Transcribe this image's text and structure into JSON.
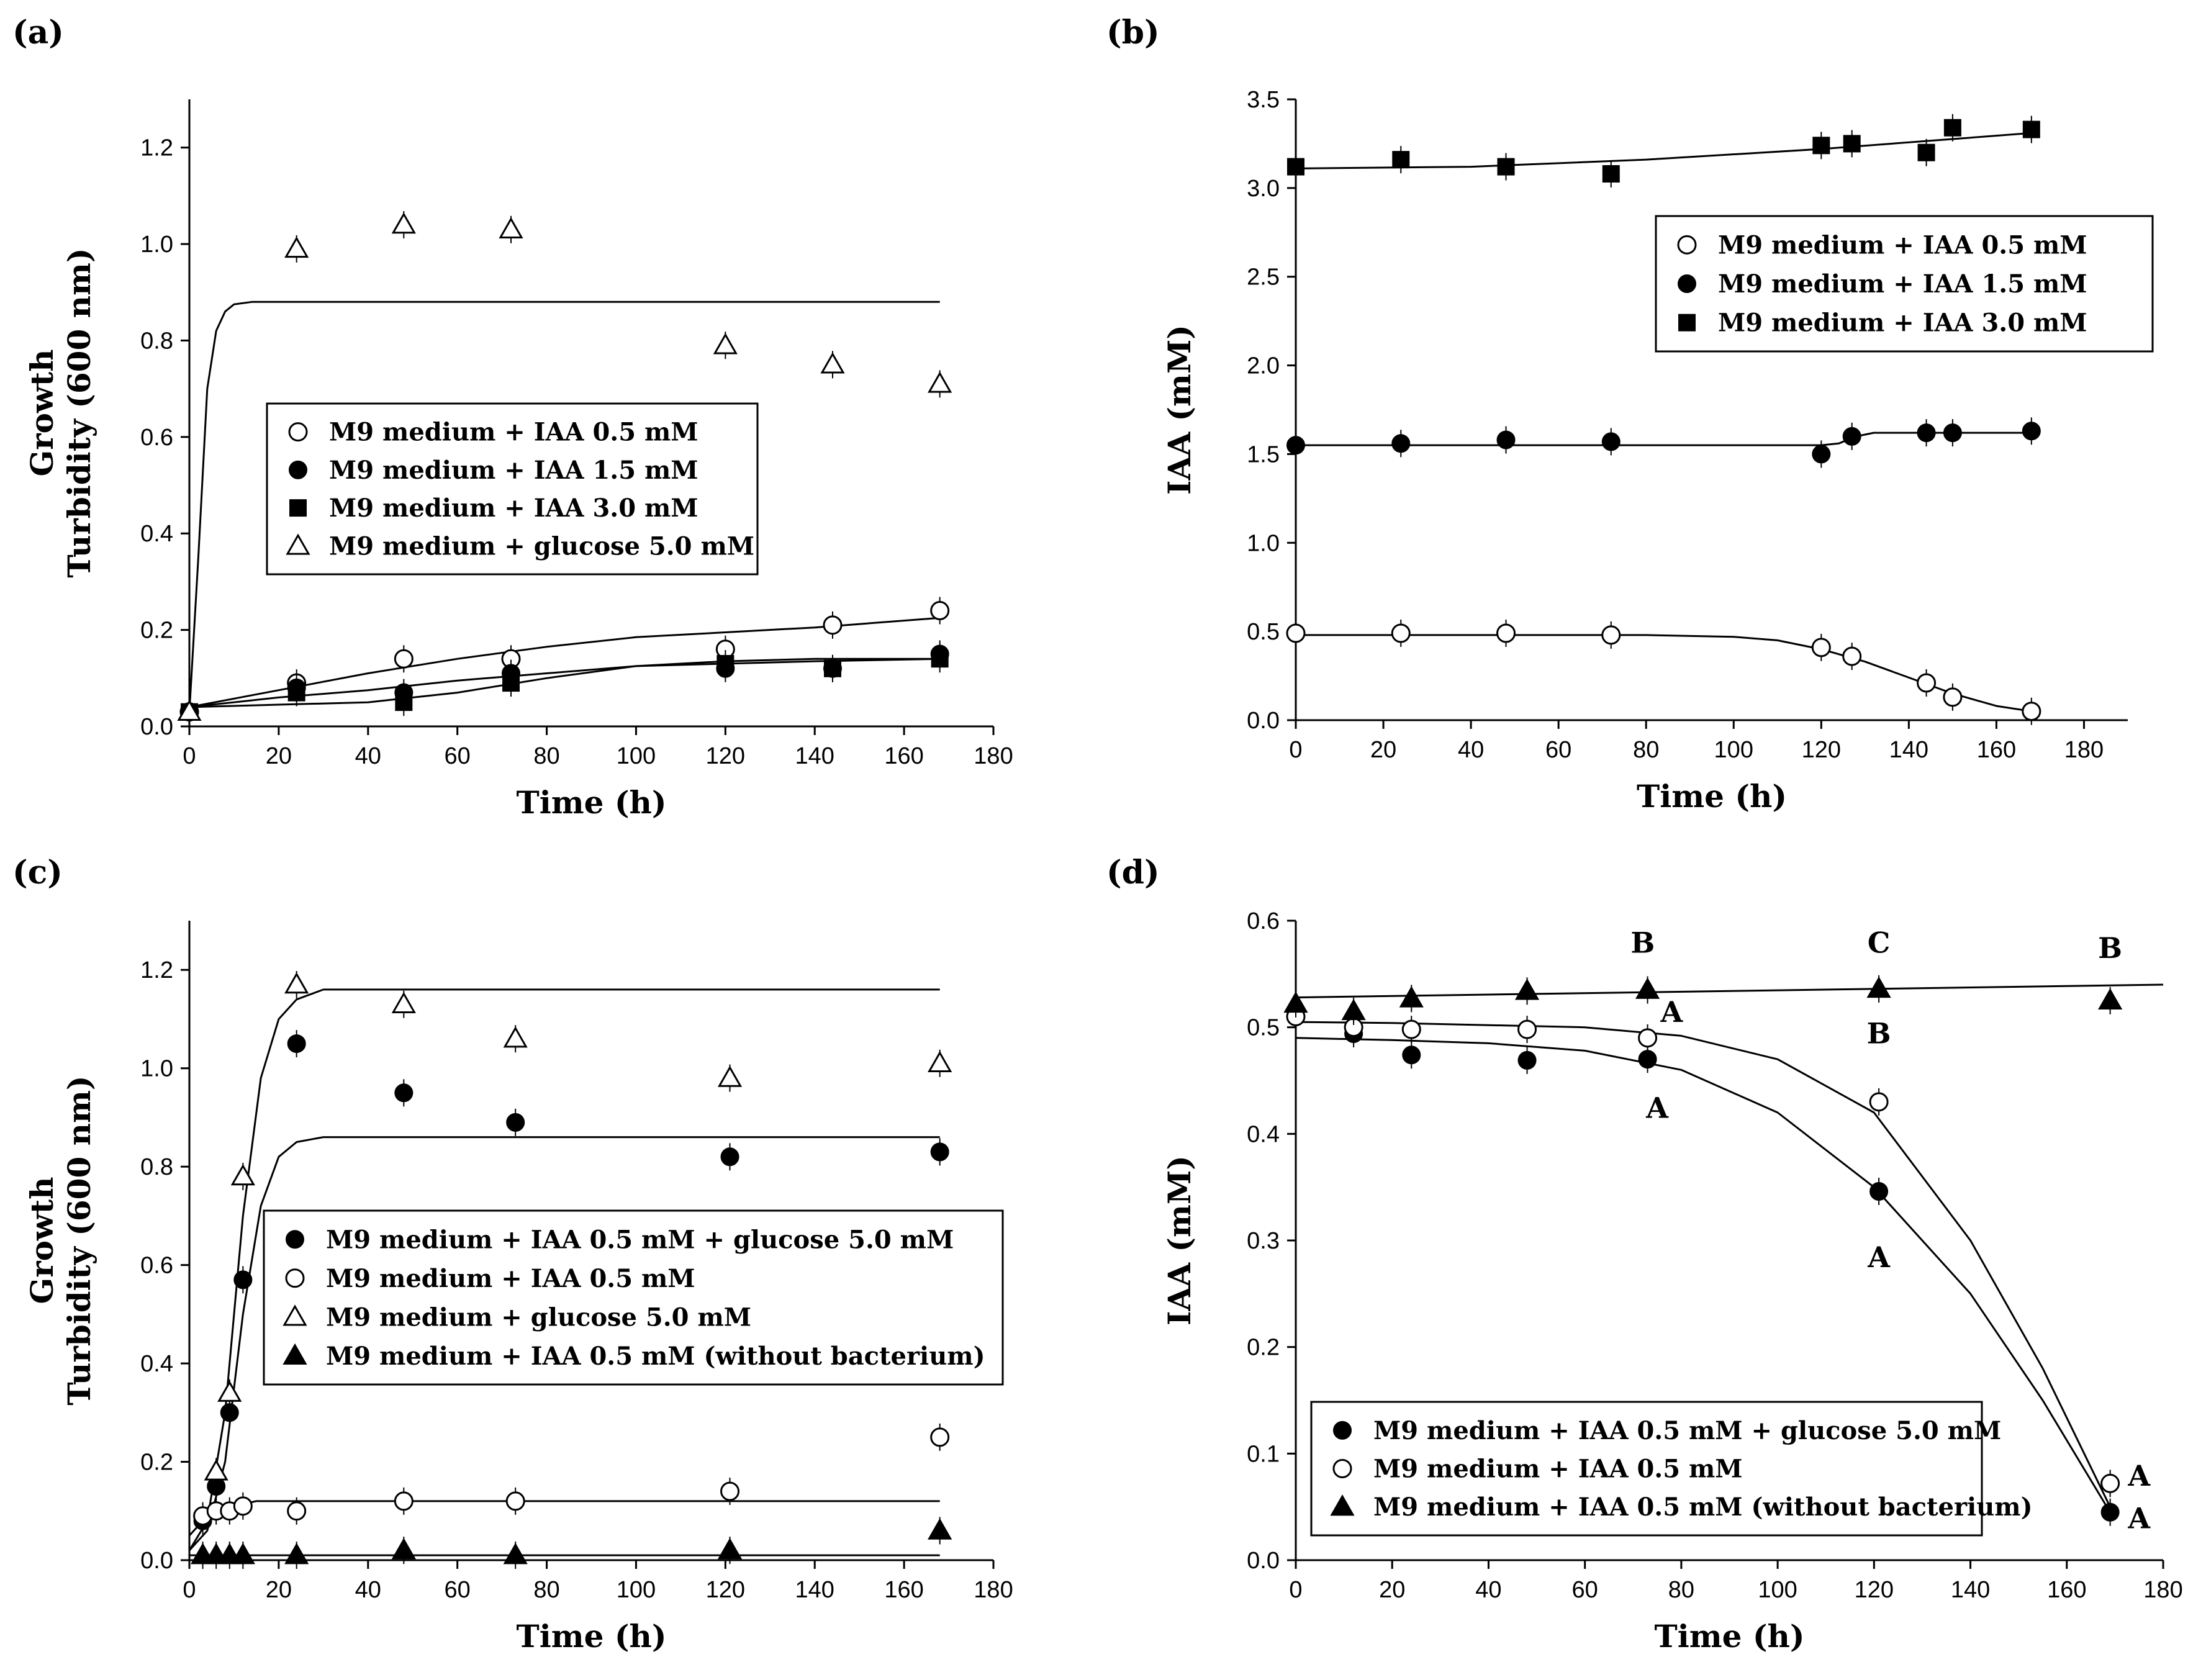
{
  "chart_data": [
    {
      "panel": "(a)",
      "type": "scatter",
      "xlabel": "Time (h)",
      "ylabel_line1": "Growth",
      "ylabel_line2": "Turbidity (600 nm)",
      "xlim": [
        0,
        180
      ],
      "ylim": [
        0,
        1.3
      ],
      "xticks": [
        "0",
        "20",
        "40",
        "60",
        "80",
        "100",
        "120",
        "140",
        "160",
        "180"
      ],
      "yticks": [
        "0.0",
        "0.2",
        "0.4",
        "0.6",
        "0.8",
        "1.0",
        "1.2"
      ],
      "legend": "center",
      "series": [
        {
          "name": "M9 medium + IAA 0.5 mM",
          "marker": "circle-open",
          "x": [
            0,
            24,
            48,
            72,
            120,
            144,
            168
          ],
          "y": [
            0.03,
            0.09,
            0.14,
            0.14,
            0.16,
            0.21,
            0.24
          ],
          "fit_x": [
            0,
            20,
            40,
            60,
            80,
            100,
            120,
            140,
            168
          ],
          "fit_y": [
            0.04,
            0.075,
            0.11,
            0.14,
            0.165,
            0.185,
            0.195,
            0.205,
            0.225
          ]
        },
        {
          "name": "M9 medium + IAA 1.5 mM",
          "marker": "circle-filled",
          "x": [
            0,
            24,
            48,
            72,
            120,
            144,
            168
          ],
          "y": [
            0.03,
            0.08,
            0.07,
            0.11,
            0.12,
            0.12,
            0.15
          ],
          "fit_x": [
            0,
            20,
            40,
            60,
            80,
            100,
            120,
            140,
            168
          ],
          "fit_y": [
            0.04,
            0.06,
            0.075,
            0.095,
            0.11,
            0.125,
            0.13,
            0.135,
            0.14
          ]
        },
        {
          "name": "M9 medium + IAA 3.0 mM",
          "marker": "square-filled",
          "x": [
            0,
            24,
            48,
            72,
            120,
            144,
            168
          ],
          "y": [
            0.03,
            0.07,
            0.05,
            0.09,
            0.13,
            0.12,
            0.14
          ],
          "fit_x": [
            0,
            20,
            40,
            60,
            80,
            100,
            120,
            140,
            168
          ],
          "fit_y": [
            0.04,
            0.045,
            0.05,
            0.07,
            0.1,
            0.125,
            0.135,
            0.14,
            0.14
          ]
        },
        {
          "name": "M9 medium + glucose 5.0 mM",
          "marker": "triangle-open",
          "x": [
            0,
            24,
            48,
            72,
            120,
            144,
            168
          ],
          "y": [
            0.03,
            0.99,
            1.04,
            1.03,
            0.79,
            0.75,
            0.71
          ],
          "fit_x": [
            0,
            2,
            4,
            6,
            8,
            10,
            14,
            20,
            168
          ],
          "fit_y": [
            0.03,
            0.35,
            0.7,
            0.82,
            0.86,
            0.875,
            0.88,
            0.88,
            0.88
          ]
        }
      ]
    },
    {
      "panel": "(b)",
      "type": "scatter",
      "xlabel": "Time (h)",
      "ylabel": "IAA (mM)",
      "xlim": [
        0,
        190
      ],
      "ylim": [
        0,
        3.5
      ],
      "xticks": [
        "0",
        "20",
        "40",
        "60",
        "80",
        "100",
        "120",
        "140",
        "160",
        "180"
      ],
      "yticks": [
        "0.0",
        "0.5",
        "1.0",
        "1.5",
        "2.0",
        "2.5",
        "3.0",
        "3.5"
      ],
      "legend": "top-right",
      "series": [
        {
          "name": "M9 medium + IAA 0.5 mM",
          "marker": "circle-open",
          "x": [
            0,
            24,
            48,
            72,
            120,
            127,
            144,
            150,
            168
          ],
          "y": [
            0.49,
            0.49,
            0.49,
            0.48,
            0.41,
            0.36,
            0.21,
            0.13,
            0.05
          ],
          "fit_x": [
            0,
            40,
            80,
            100,
            110,
            120,
            130,
            140,
            150,
            160,
            168
          ],
          "fit_y": [
            0.48,
            0.48,
            0.48,
            0.47,
            0.45,
            0.4,
            0.33,
            0.24,
            0.15,
            0.08,
            0.05
          ]
        },
        {
          "name": "M9 medium + IAA 1.5 mM",
          "marker": "circle-filled",
          "x": [
            0,
            24,
            48,
            72,
            120,
            127,
            144,
            150,
            168
          ],
          "y": [
            1.55,
            1.56,
            1.58,
            1.57,
            1.5,
            1.6,
            1.62,
            1.62,
            1.63
          ],
          "fit_x": [
            0,
            120,
            124,
            128,
            132,
            168
          ],
          "fit_y": [
            1.55,
            1.55,
            1.56,
            1.6,
            1.62,
            1.62
          ]
        },
        {
          "name": "M9 medium + IAA 3.0 mM",
          "marker": "square-filled",
          "x": [
            0,
            24,
            48,
            72,
            120,
            127,
            144,
            150,
            168
          ],
          "y": [
            3.12,
            3.16,
            3.12,
            3.08,
            3.24,
            3.25,
            3.2,
            3.34,
            3.33
          ],
          "fit_x": [
            0,
            40,
            80,
            120,
            168
          ],
          "fit_y": [
            3.11,
            3.12,
            3.16,
            3.22,
            3.31
          ]
        }
      ]
    },
    {
      "panel": "(c)",
      "type": "scatter",
      "xlabel": "Time (h)",
      "ylabel_line1": "Growth",
      "ylabel_line2": "Turbidity (600 nm)",
      "xlim": [
        0,
        180
      ],
      "ylim": [
        0,
        1.3
      ],
      "xticks": [
        "0",
        "20",
        "40",
        "60",
        "80",
        "100",
        "120",
        "140",
        "160",
        "180"
      ],
      "yticks": [
        "0.0",
        "0.2",
        "0.4",
        "0.6",
        "0.8",
        "1.0",
        "1.2"
      ],
      "legend": "center",
      "series": [
        {
          "name": "M9 medium + IAA 0.5 mM + glucose 5.0 mM",
          "marker": "circle-filled",
          "x": [
            3,
            6,
            9,
            12,
            24,
            48,
            73,
            121,
            168
          ],
          "y": [
            0.08,
            0.15,
            0.3,
            0.57,
            1.05,
            0.95,
            0.89,
            0.82,
            0.83
          ],
          "fit_x": [
            0,
            4,
            8,
            12,
            16,
            20,
            24,
            30,
            168
          ],
          "fit_y": [
            0.02,
            0.06,
            0.2,
            0.5,
            0.72,
            0.82,
            0.85,
            0.86,
            0.86
          ]
        },
        {
          "name": "M9 medium + IAA 0.5 mM",
          "marker": "circle-open",
          "x": [
            3,
            6,
            9,
            12,
            24,
            48,
            73,
            121,
            168
          ],
          "y": [
            0.09,
            0.1,
            0.1,
            0.11,
            0.1,
            0.12,
            0.12,
            0.14,
            0.25
          ],
          "fit_x": [
            0,
            3,
            6,
            10,
            15,
            168
          ],
          "fit_y": [
            0.05,
            0.08,
            0.1,
            0.11,
            0.12,
            0.12
          ]
        },
        {
          "name": "M9 medium + glucose 5.0 mM",
          "marker": "triangle-open",
          "x": [
            6,
            9,
            12,
            24,
            48,
            73,
            121,
            168
          ],
          "y": [
            0.18,
            0.34,
            0.78,
            1.17,
            1.13,
            1.06,
            0.98,
            1.01
          ],
          "fit_x": [
            0,
            4,
            8,
            12,
            16,
            20,
            24,
            30,
            168
          ],
          "fit_y": [
            0.02,
            0.08,
            0.3,
            0.7,
            0.98,
            1.1,
            1.14,
            1.16,
            1.16
          ]
        },
        {
          "name": "M9 medium + IAA 0.5 mM (without bacterium)",
          "marker": "triangle-filled",
          "x": [
            3,
            6,
            9,
            12,
            24,
            48,
            73,
            121,
            168
          ],
          "y": [
            0.01,
            0.01,
            0.01,
            0.01,
            0.01,
            0.02,
            0.01,
            0.02,
            0.06
          ],
          "fit_x": [
            0,
            168
          ],
          "fit_y": [
            0.01,
            0.01
          ]
        }
      ]
    },
    {
      "panel": "(d)",
      "type": "scatter",
      "xlabel": "Time (h)",
      "ylabel": "IAA (mM)",
      "xlim": [
        0,
        180
      ],
      "ylim": [
        0,
        0.6
      ],
      "xticks": [
        "0",
        "20",
        "40",
        "60",
        "80",
        "100",
        "120",
        "140",
        "160",
        "180"
      ],
      "yticks": [
        "0.0",
        "0.1",
        "0.2",
        "0.3",
        "0.4",
        "0.5",
        "0.6"
      ],
      "legend": "bottom-left",
      "annotations": [
        {
          "text": "B",
          "x": 72,
          "y": 0.57
        },
        {
          "text": "C",
          "x": 121,
          "y": 0.57
        },
        {
          "text": "B",
          "x": 169,
          "y": 0.565
        },
        {
          "text": "A",
          "x": 78,
          "y": 0.505
        },
        {
          "text": "B",
          "x": 121,
          "y": 0.485
        },
        {
          "text": "A",
          "x": 75,
          "y": 0.415
        },
        {
          "text": "A",
          "x": 121,
          "y": 0.275
        },
        {
          "text": "A",
          "x": 175,
          "y": 0.07
        },
        {
          "text": "A",
          "x": 175,
          "y": 0.03
        }
      ],
      "series": [
        {
          "name": "M9 medium + IAA 0.5 mM + glucose 5.0 mM",
          "marker": "circle-filled",
          "x": [
            0,
            12,
            24,
            48,
            73,
            121,
            169
          ],
          "y": [
            0.51,
            0.494,
            0.474,
            0.469,
            0.47,
            0.346,
            0.045
          ],
          "fit_x": [
            0,
            20,
            40,
            60,
            80,
            100,
            120,
            140,
            155,
            169
          ],
          "fit_y": [
            0.49,
            0.488,
            0.485,
            0.478,
            0.46,
            0.42,
            0.35,
            0.25,
            0.15,
            0.045
          ]
        },
        {
          "name": "M9 medium + IAA 0.5 mM",
          "marker": "circle-open",
          "x": [
            0,
            12,
            24,
            48,
            73,
            121,
            169
          ],
          "y": [
            0.51,
            0.5,
            0.498,
            0.498,
            0.49,
            0.43,
            0.072
          ],
          "fit_x": [
            0,
            20,
            40,
            60,
            80,
            100,
            120,
            140,
            155,
            169
          ],
          "fit_y": [
            0.505,
            0.504,
            0.502,
            0.5,
            0.492,
            0.47,
            0.42,
            0.3,
            0.18,
            0.05
          ]
        },
        {
          "name": "M9 medium + IAA 0.5 mM (without bacterium)",
          "marker": "triangle-filled",
          "x": [
            0,
            12,
            24,
            48,
            73,
            121,
            169
          ],
          "y": [
            0.522,
            0.515,
            0.527,
            0.534,
            0.535,
            0.536,
            0.525
          ],
          "fit_x": [
            0,
            180
          ],
          "fit_y": [
            0.528,
            0.54
          ]
        }
      ]
    }
  ]
}
